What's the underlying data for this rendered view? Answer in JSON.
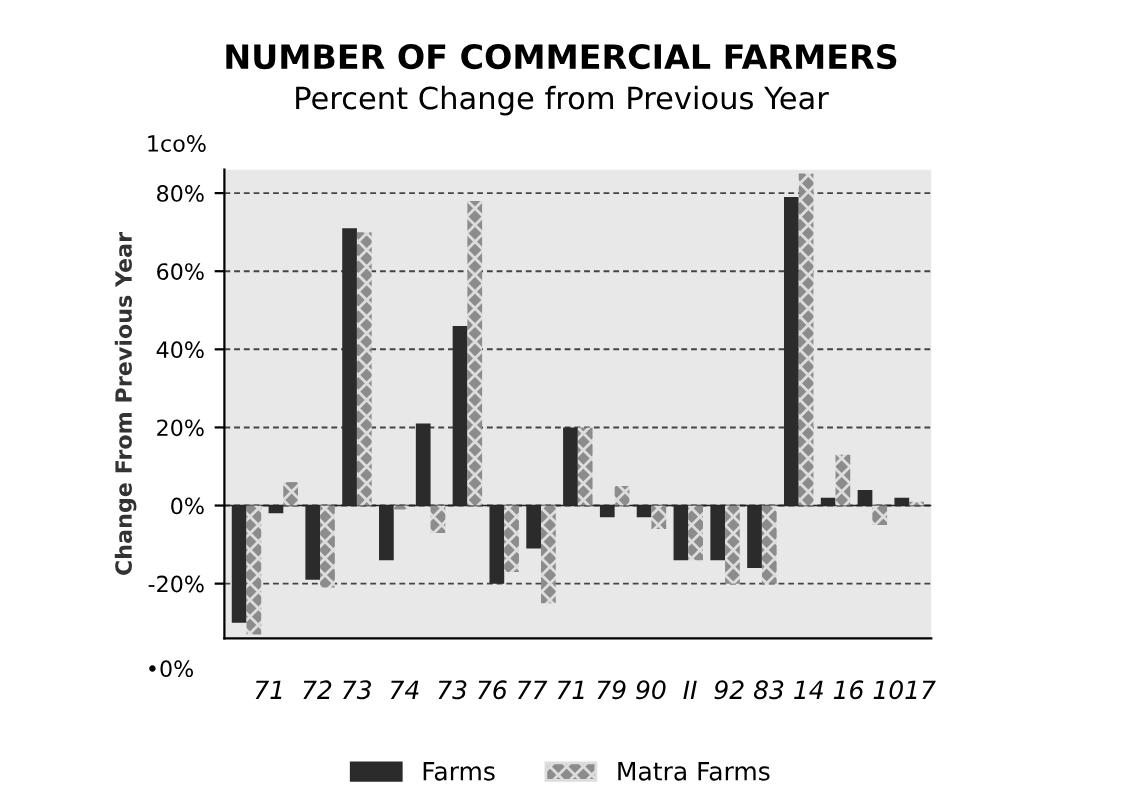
{
  "chart_data": {
    "type": "bar",
    "title": "NUMBER OF COMMERCIAL FARMERS",
    "subtitle": "Percent Change from Previous Year",
    "ylabel": "Change From Previous Year",
    "categories": [
      null,
      null,
      null,
      null,
      null,
      null,
      null,
      null,
      null,
      null,
      null,
      null,
      null,
      null,
      null,
      null,
      null,
      null,
      null
    ],
    "series": [
      {
        "name": "Farms",
        "color": "#2b2b2b",
        "values": [
          -30,
          -2,
          -19,
          71,
          -14,
          21,
          46,
          -20,
          -11,
          20,
          -3,
          -3,
          -14,
          -14,
          -16,
          79,
          2,
          4,
          2
        ]
      },
      {
        "name": "Matra Farms",
        "color": "#8c8c8c",
        "values": [
          -33,
          6,
          -21,
          70,
          -1,
          -7,
          78,
          -17,
          -25,
          20,
          5,
          -6,
          -14,
          -20,
          -20,
          85,
          13,
          -5,
          1
        ]
      }
    ],
    "ylim": [
      -34,
      86
    ],
    "yticks": [
      {
        "value": -20,
        "label": "-20%"
      },
      {
        "value": 0,
        "label": "0%"
      },
      {
        "value": 20,
        "label": "20%"
      },
      {
        "value": 40,
        "label": "40%"
      },
      {
        "value": 60,
        "label": "60%"
      },
      {
        "value": 80,
        "label": "80%"
      }
    ],
    "grid": "y",
    "legend": "bottom",
    "annotations": [
      "71  72 73  74  73 76 77 71 79 90  II  92 83 14 16 1017",
      "1co%",
      "•0%"
    ]
  }
}
